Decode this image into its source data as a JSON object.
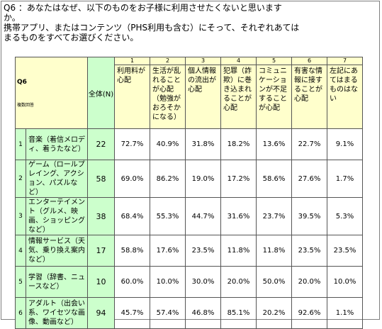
{
  "question": {
    "line1": "Q6 ：あなたはなぜ、以下のものをお子様に利用させたくないと思います",
    "line2": "か。",
    "line3": "携帯アプリ、またはコンテンツ（PHS利用も含む）にそって、それぞれあては",
    "line4": "まるものをすべてお選びください。"
  },
  "table": {
    "q_label": "Q6",
    "sub_note": "複数回答",
    "total_header": "全体(N)",
    "col_numbers": [
      "1",
      "2",
      "3",
      "4",
      "5",
      "6",
      "7"
    ],
    "col_headers": [
      "利用料が心配",
      "生活が乱れることが心配（勉強がおろそかになる）",
      "個人情報の流出が心配",
      "犯罪（詐欺）に巻き込まれることが心配",
      "コミュニケーションが不足することが心配",
      "有害な情報に接することが心配",
      "左記にあてはまるものはない"
    ],
    "rows": [
      {
        "num": "1",
        "label": "音楽（着信メロディ、着うたなど）",
        "total": "22",
        "values": [
          "72.7%",
          "40.9%",
          "31.8%",
          "18.2%",
          "13.6%",
          "22.7%",
          "9.1%"
        ]
      },
      {
        "num": "2",
        "label": "ゲーム（ロールプレイング、アクション、パズルなど）",
        "total": "58",
        "values": [
          "69.0%",
          "86.2%",
          "19.0%",
          "17.2%",
          "58.6%",
          "27.6%",
          "1.7%"
        ]
      },
      {
        "num": "3",
        "label": "エンターテイメント（グルメ、映画、ショッピングなど）",
        "total": "38",
        "values": [
          "68.4%",
          "55.3%",
          "44.7%",
          "31.6%",
          "23.7%",
          "39.5%",
          "5.3%"
        ]
      },
      {
        "num": "4",
        "label": "情報サービス（天気、乗り換え案内など）",
        "total": "17",
        "values": [
          "58.8%",
          "17.6%",
          "23.5%",
          "11.8%",
          "11.8%",
          "23.5%",
          "23.5%"
        ]
      },
      {
        "num": "5",
        "label": "学習（辞書、ニュースなど）",
        "total": "10",
        "values": [
          "60.0%",
          "10.0%",
          "30.0%",
          "20.0%",
          "50.0%",
          "20.0%",
          "10.0%"
        ]
      },
      {
        "num": "6",
        "label": "アダルト（出会い系、ワイセツな画像、動画など）",
        "total": "94",
        "values": [
          "45.7%",
          "57.4%",
          "46.8%",
          "85.1%",
          "20.2%",
          "92.6%",
          "1.1%"
        ]
      }
    ]
  }
}
